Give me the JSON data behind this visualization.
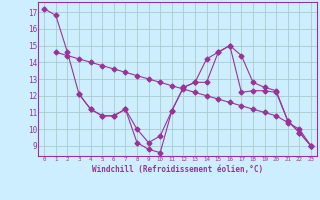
{
  "line1_x": [
    0,
    1,
    2,
    3,
    4,
    5,
    6,
    7,
    8,
    9,
    10,
    11,
    12,
    13,
    14,
    15,
    16,
    17,
    18,
    19,
    20,
    21,
    22,
    23
  ],
  "line1_y": [
    17.2,
    16.8,
    14.6,
    12.1,
    11.2,
    10.8,
    10.8,
    11.2,
    9.2,
    8.8,
    8.6,
    11.1,
    12.5,
    12.8,
    14.2,
    14.6,
    15.0,
    12.2,
    12.3,
    12.3,
    12.2,
    10.5,
    9.8,
    9.0
  ],
  "line2_x": [
    1,
    2,
    3,
    4,
    5,
    6,
    7,
    8,
    9,
    10,
    11,
    12,
    13,
    14,
    15,
    16,
    17,
    18,
    19,
    20,
    21,
    22,
    23
  ],
  "line2_y": [
    14.6,
    14.4,
    14.2,
    14.0,
    13.8,
    13.6,
    13.4,
    13.2,
    13.0,
    12.8,
    12.6,
    12.4,
    12.2,
    12.0,
    11.8,
    11.6,
    11.4,
    11.2,
    11.0,
    10.8,
    10.4,
    10.0,
    9.0
  ],
  "line3_x": [
    3,
    4,
    5,
    6,
    7,
    8,
    9,
    10,
    11,
    12,
    13,
    14,
    15,
    16,
    17,
    18,
    19,
    20,
    21,
    22,
    23
  ],
  "line3_y": [
    12.1,
    11.2,
    10.8,
    10.8,
    11.2,
    10.0,
    9.2,
    9.6,
    11.1,
    12.5,
    12.8,
    12.8,
    14.6,
    15.0,
    14.4,
    12.8,
    12.5,
    12.3,
    10.5,
    9.8,
    9.0
  ],
  "line_color": "#993399",
  "bg_color": "#cceeff",
  "grid_color": "#aacccc",
  "xlabel": "Windchill (Refroidissement éolien,°C)",
  "ylabel_ticks": [
    9,
    10,
    11,
    12,
    13,
    14,
    15,
    16,
    17
  ],
  "xlim": [
    -0.5,
    23.5
  ],
  "ylim": [
    8.4,
    17.6
  ],
  "figwidth": 3.2,
  "figheight": 2.0,
  "dpi": 100
}
